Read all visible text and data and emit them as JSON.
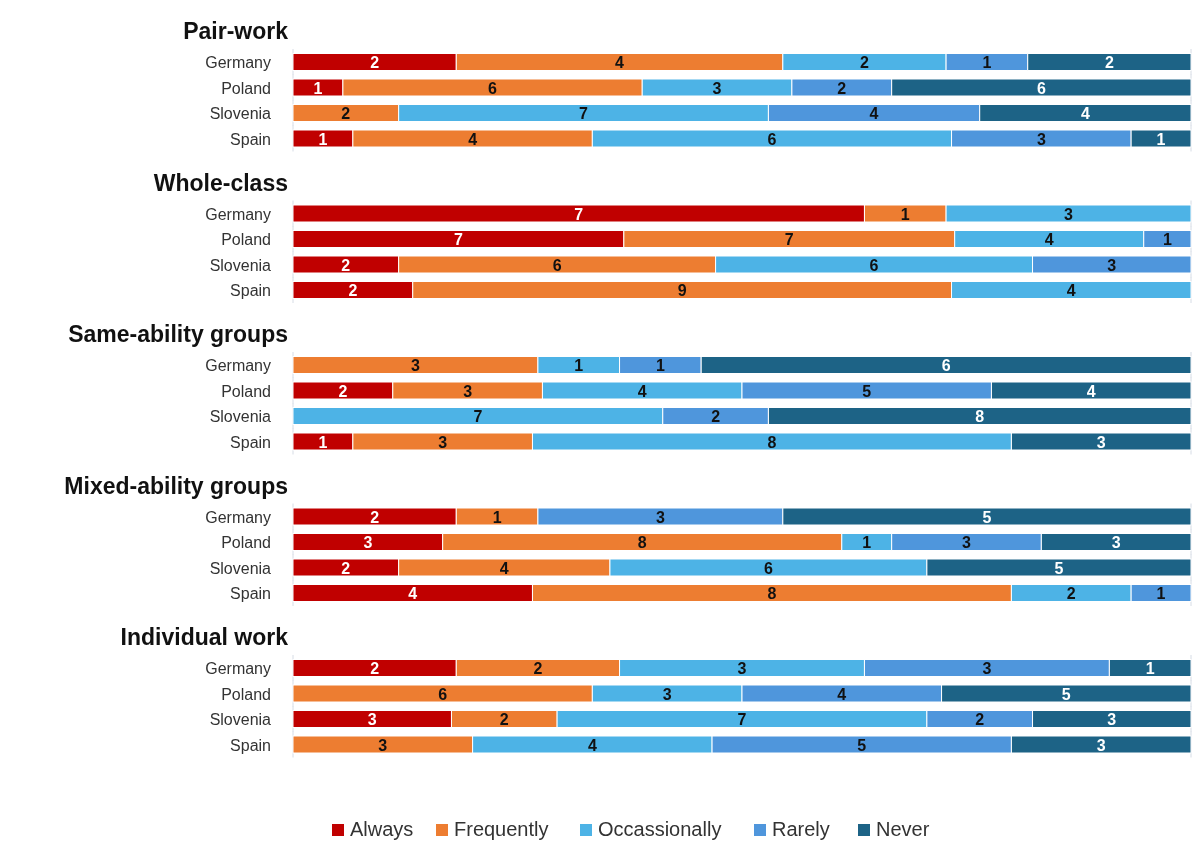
{
  "chart_data": [
    {
      "type": "bar",
      "orientation": "horizontal",
      "stacked": true,
      "data_labels": true,
      "legend": "bottom",
      "title": "Pair-work",
      "categories": [
        "Germany"
      ],
      "xlim": [
        0,
        11
      ],
      "series": [
        {
          "name": "Always",
          "color": "#c00000",
          "values": [
            2
          ]
        },
        {
          "name": "Frequently",
          "color": "#ed7d31",
          "values": [
            4
          ]
        },
        {
          "name": "Occassionally",
          "color": "#4db3e6",
          "values": [
            2
          ]
        },
        {
          "name": "Rarely",
          "color": "#4f96dc",
          "values": [
            1
          ]
        },
        {
          "name": "Never",
          "color": "#1d6386",
          "values": [
            2
          ]
        }
      ]
    },
    {
      "type": "bar",
      "orientation": "horizontal",
      "stacked": true,
      "data_labels": true,
      "categories": [
        "Poland"
      ],
      "xlim": [
        0,
        18
      ],
      "series": [
        {
          "color": "#c00000",
          "values": [
            1
          ]
        },
        {
          "color": "#ed7d31",
          "values": [
            6
          ]
        },
        {
          "color": "#4db3e6",
          "values": [
            3
          ]
        },
        {
          "color": "#4f96dc",
          "values": [
            2
          ]
        },
        {
          "color": "#1d6386",
          "values": [
            6
          ]
        }
      ]
    },
    {
      "type": "bar",
      "orientation": "horizontal",
      "stacked": true,
      "data_labels": true,
      "categories": [
        "Slovenia"
      ],
      "xlim": [
        0,
        17
      ],
      "series": [
        {
          "color": "#ed7d31",
          "values": [
            2
          ]
        },
        {
          "color": "#4db3e6",
          "values": [
            7
          ]
        },
        {
          "color": "#4f96dc",
          "values": [
            4
          ]
        },
        {
          "color": "#1d6386",
          "values": [
            4
          ]
        }
      ]
    },
    {
      "type": "bar",
      "orientation": "horizontal",
      "stacked": true,
      "data_labels": true,
      "categories": [
        "Spain"
      ],
      "xlim": [
        0,
        15
      ],
      "series": [
        {
          "color": "#c00000",
          "values": [
            1
          ]
        },
        {
          "color": "#ed7d31",
          "values": [
            4
          ]
        },
        {
          "color": "#4db3e6",
          "values": [
            6
          ]
        },
        {
          "color": "#4f96dc",
          "values": [
            3
          ]
        },
        {
          "color": "#1d6386",
          "values": [
            1
          ]
        }
      ]
    },
    {
      "type": "bar",
      "orientation": "horizontal",
      "stacked": true,
      "data_labels": true,
      "title": "Whole-class",
      "categories": [
        "Germany"
      ],
      "xlim": [
        0,
        11
      ],
      "series": [
        {
          "color": "#c00000",
          "values": [
            7
          ]
        },
        {
          "color": "#ed7d31",
          "values": [
            1
          ]
        },
        {
          "color": "#4db3e6",
          "values": [
            3
          ]
        }
      ]
    },
    {
      "type": "bar",
      "orientation": "horizontal",
      "stacked": true,
      "data_labels": true,
      "categories": [
        "Poland"
      ],
      "xlim": [
        0,
        19
      ],
      "series": [
        {
          "color": "#c00000",
          "values": [
            7
          ]
        },
        {
          "color": "#ed7d31",
          "values": [
            7
          ]
        },
        {
          "color": "#4db3e6",
          "values": [
            4
          ]
        },
        {
          "color": "#4f96dc",
          "values": [
            1
          ]
        }
      ]
    },
    {
      "type": "bar",
      "orientation": "horizontal",
      "stacked": true,
      "data_labels": true,
      "categories": [
        "Slovenia"
      ],
      "xlim": [
        0,
        17
      ],
      "series": [
        {
          "color": "#c00000",
          "values": [
            2
          ]
        },
        {
          "color": "#ed7d31",
          "values": [
            6
          ]
        },
        {
          "color": "#4db3e6",
          "values": [
            6
          ]
        },
        {
          "color": "#4f96dc",
          "values": [
            3
          ]
        }
      ]
    },
    {
      "type": "bar",
      "orientation": "horizontal",
      "stacked": true,
      "data_labels": true,
      "categories": [
        "Spain"
      ],
      "xlim": [
        0,
        15
      ],
      "series": [
        {
          "color": "#c00000",
          "values": [
            2
          ]
        },
        {
          "color": "#ed7d31",
          "values": [
            9
          ]
        },
        {
          "color": "#4db3e6",
          "values": [
            4
          ]
        }
      ]
    },
    {
      "type": "bar",
      "orientation": "horizontal",
      "stacked": true,
      "data_labels": true,
      "title": "Same-ability groups",
      "categories": [
        "Germany"
      ],
      "xlim": [
        0,
        11
      ],
      "series": [
        {
          "color": "#ed7d31",
          "values": [
            3
          ]
        },
        {
          "color": "#4db3e6",
          "values": [
            1
          ]
        },
        {
          "color": "#4f96dc",
          "values": [
            1
          ]
        },
        {
          "color": "#1d6386",
          "values": [
            6
          ]
        }
      ]
    },
    {
      "type": "bar",
      "orientation": "horizontal",
      "stacked": true,
      "data_labels": true,
      "categories": [
        "Poland"
      ],
      "xlim": [
        0,
        18
      ],
      "series": [
        {
          "color": "#c00000",
          "values": [
            2
          ]
        },
        {
          "color": "#ed7d31",
          "values": [
            3
          ]
        },
        {
          "color": "#4db3e6",
          "values": [
            4
          ]
        },
        {
          "color": "#4f96dc",
          "values": [
            5
          ]
        },
        {
          "color": "#1d6386",
          "values": [
            4
          ]
        }
      ]
    },
    {
      "type": "bar",
      "orientation": "horizontal",
      "stacked": true,
      "data_labels": true,
      "categories": [
        "Slovenia"
      ],
      "xlim": [
        0,
        17
      ],
      "series": [
        {
          "color": "#4db3e6",
          "values": [
            7
          ]
        },
        {
          "color": "#4f96dc",
          "values": [
            2
          ]
        },
        {
          "color": "#1d6386",
          "values": [
            8
          ]
        }
      ]
    },
    {
      "type": "bar",
      "orientation": "horizontal",
      "stacked": true,
      "data_labels": true,
      "categories": [
        "Spain"
      ],
      "xlim": [
        0,
        15
      ],
      "series": [
        {
          "color": "#c00000",
          "values": [
            1
          ]
        },
        {
          "color": "#ed7d31",
          "values": [
            3
          ]
        },
        {
          "color": "#4db3e6",
          "values": [
            8
          ]
        },
        {
          "color": "#1d6386",
          "values": [
            3
          ]
        }
      ]
    },
    {
      "type": "bar",
      "orientation": "horizontal",
      "stacked": true,
      "data_labels": true,
      "title": "Mixed-ability groups",
      "categories": [
        "Germany"
      ],
      "xlim": [
        0,
        11
      ],
      "series": [
        {
          "color": "#c00000",
          "values": [
            2
          ]
        },
        {
          "color": "#ed7d31",
          "values": [
            1
          ]
        },
        {
          "color": "#4f96dc",
          "values": [
            3
          ]
        },
        {
          "color": "#1d6386",
          "values": [
            5
          ]
        }
      ]
    },
    {
      "type": "bar",
      "orientation": "horizontal",
      "stacked": true,
      "data_labels": true,
      "categories": [
        "Poland"
      ],
      "xlim": [
        0,
        18
      ],
      "series": [
        {
          "color": "#c00000",
          "values": [
            3
          ]
        },
        {
          "color": "#ed7d31",
          "values": [
            8
          ]
        },
        {
          "color": "#4db3e6",
          "values": [
            1
          ]
        },
        {
          "color": "#4f96dc",
          "values": [
            3
          ]
        },
        {
          "color": "#1d6386",
          "values": [
            3
          ]
        }
      ]
    },
    {
      "type": "bar",
      "orientation": "horizontal",
      "stacked": true,
      "data_labels": true,
      "categories": [
        "Slovenia"
      ],
      "xlim": [
        0,
        17
      ],
      "series": [
        {
          "color": "#c00000",
          "values": [
            2
          ]
        },
        {
          "color": "#ed7d31",
          "values": [
            4
          ]
        },
        {
          "color": "#4db3e6",
          "values": [
            6
          ]
        },
        {
          "color": "#1d6386",
          "values": [
            5
          ]
        }
      ]
    },
    {
      "type": "bar",
      "orientation": "horizontal",
      "stacked": true,
      "data_labels": true,
      "categories": [
        "Spain"
      ],
      "xlim": [
        0,
        15
      ],
      "series": [
        {
          "color": "#c00000",
          "values": [
            4
          ]
        },
        {
          "color": "#ed7d31",
          "values": [
            8
          ]
        },
        {
          "color": "#4db3e6",
          "values": [
            2
          ]
        },
        {
          "color": "#4f96dc",
          "values": [
            1
          ]
        }
      ]
    },
    {
      "type": "bar",
      "orientation": "horizontal",
      "stacked": true,
      "data_labels": true,
      "title": "Individual work",
      "categories": [
        "Germany"
      ],
      "xlim": [
        0,
        11
      ],
      "series": [
        {
          "color": "#c00000",
          "values": [
            2
          ]
        },
        {
          "color": "#ed7d31",
          "values": [
            2
          ]
        },
        {
          "color": "#4db3e6",
          "values": [
            3
          ]
        },
        {
          "color": "#4f96dc",
          "values": [
            3
          ]
        },
        {
          "color": "#1d6386",
          "values": [
            1
          ]
        }
      ]
    },
    {
      "type": "bar",
      "orientation": "horizontal",
      "stacked": true,
      "data_labels": true,
      "categories": [
        "Poland"
      ],
      "xlim": [
        0,
        18
      ],
      "series": [
        {
          "color": "#ed7d31",
          "values": [
            6
          ]
        },
        {
          "color": "#4db3e6",
          "values": [
            3
          ]
        },
        {
          "color": "#4f96dc",
          "values": [
            4
          ]
        },
        {
          "color": "#1d6386",
          "values": [
            5
          ]
        }
      ]
    },
    {
      "type": "bar",
      "orientation": "horizontal",
      "stacked": true,
      "data_labels": true,
      "categories": [
        "Slovenia"
      ],
      "xlim": [
        0,
        17
      ],
      "series": [
        {
          "color": "#c00000",
          "values": [
            3
          ]
        },
        {
          "color": "#ed7d31",
          "values": [
            2
          ]
        },
        {
          "color": "#4db3e6",
          "values": [
            7
          ]
        },
        {
          "color": "#4f96dc",
          "values": [
            2
          ]
        },
        {
          "color": "#1d6386",
          "values": [
            3
          ]
        }
      ]
    },
    {
      "type": "bar",
      "orientation": "horizontal",
      "stacked": true,
      "data_labels": true,
      "categories": [
        "Spain"
      ],
      "xlim": [
        0,
        15
      ],
      "series": [
        {
          "color": "#ed7d31",
          "values": [
            3
          ]
        },
        {
          "color": "#4db3e6",
          "values": [
            4
          ]
        },
        {
          "color": "#4f96dc",
          "values": [
            5
          ]
        },
        {
          "color": "#1d6386",
          "values": [
            3
          ]
        }
      ]
    }
  ]
}
